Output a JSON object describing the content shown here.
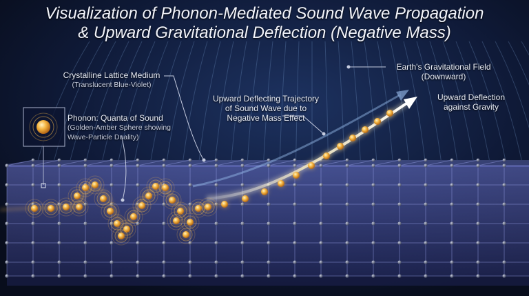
{
  "title": {
    "line1": "Visualization of Phonon-Mediated Sound Wave Propagation",
    "line2": "& Upward Gravitational Deflection (Negative Mass)"
  },
  "labels": {
    "lattice_title": "Crystalline Lattice Medium",
    "lattice_sub": "(Translucent Blue-Violet)",
    "gravity_title": "Earth's Gravitational Field",
    "gravity_sub": "(Downward)",
    "trajectory_l1": "Upward Deflecting Trajectory",
    "trajectory_l2": "of Sound Wave due to",
    "trajectory_l3": "Negative Mass Effect",
    "deflection_l1": "Upward Deflection",
    "deflection_l2": "against Gravity",
    "phonon_title": "Phonon: Quanta of Sound",
    "phonon_sub1": "(Golden-Amber Sphere showing",
    "phonon_sub2": "Wave-Particle Duality)"
  },
  "colors": {
    "background": "#0a1124",
    "lattice": "#5a64b8",
    "phonon": "#f0a630",
    "arrow": "#fff6d8",
    "field_lines": "#7fa6d8"
  }
}
